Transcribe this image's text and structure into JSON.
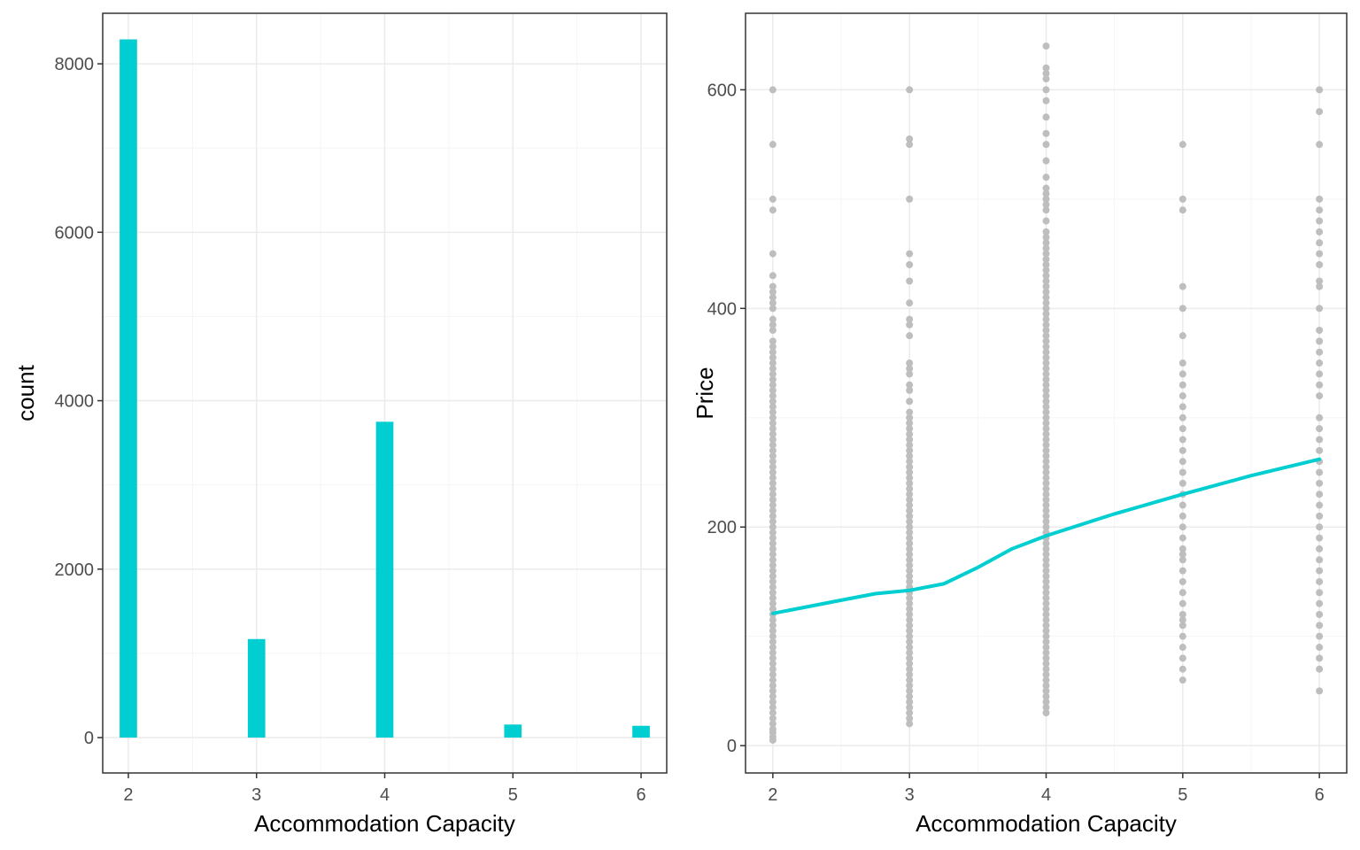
{
  "colors": {
    "accent": "#00CED1",
    "points": "#BEBEBE",
    "grid_major": "#EBEBEB",
    "grid_minor": "#F5F5F5",
    "panel_border": "#333333"
  },
  "chart_data": [
    {
      "type": "bar",
      "title": "",
      "xlabel": "Accommodation Capacity",
      "ylabel": "count",
      "categories": [
        2,
        3,
        4,
        5,
        6
      ],
      "values": [
        8290,
        1170,
        3750,
        155,
        140
      ],
      "xlim": [
        1.8,
        6.2
      ],
      "ylim": [
        -420,
        8600
      ],
      "x_ticks": [
        "2",
        "3",
        "4",
        "5",
        "6"
      ],
      "y_ticks": [
        "0",
        "2000",
        "4000",
        "6000",
        "8000"
      ],
      "grid": true
    },
    {
      "type": "scatter",
      "title": "",
      "xlabel": "Accommodation Capacity",
      "ylabel": "Price",
      "xlim": [
        1.8,
        6.2
      ],
      "ylim": [
        -25,
        670
      ],
      "x_ticks": [
        "2",
        "3",
        "4",
        "5",
        "6"
      ],
      "y_ticks": [
        "0",
        "200",
        "400",
        "600"
      ],
      "grid": true,
      "series": [
        {
          "x": 2,
          "values": [
            5,
            8,
            12,
            15,
            20,
            25,
            30,
            35,
            40,
            45,
            50,
            55,
            60,
            65,
            70,
            75,
            80,
            85,
            90,
            95,
            100,
            105,
            110,
            115,
            120,
            125,
            130,
            135,
            140,
            145,
            150,
            155,
            160,
            165,
            170,
            175,
            180,
            185,
            190,
            195,
            200,
            205,
            210,
            215,
            220,
            225,
            230,
            235,
            240,
            245,
            250,
            255,
            260,
            265,
            270,
            275,
            280,
            285,
            290,
            295,
            300,
            305,
            310,
            315,
            320,
            325,
            330,
            335,
            340,
            345,
            350,
            355,
            360,
            365,
            370,
            380,
            385,
            390,
            400,
            405,
            410,
            415,
            420,
            430,
            450,
            490,
            500,
            550,
            600
          ]
        },
        {
          "x": 3,
          "values": [
            20,
            25,
            30,
            35,
            40,
            45,
            50,
            55,
            60,
            65,
            70,
            75,
            80,
            85,
            90,
            95,
            100,
            105,
            110,
            115,
            120,
            125,
            130,
            135,
            140,
            145,
            150,
            155,
            160,
            165,
            170,
            175,
            180,
            185,
            190,
            195,
            200,
            205,
            210,
            215,
            220,
            225,
            230,
            235,
            240,
            245,
            250,
            255,
            260,
            265,
            270,
            275,
            280,
            285,
            290,
            295,
            300,
            305,
            315,
            325,
            330,
            340,
            345,
            350,
            375,
            385,
            390,
            405,
            425,
            440,
            450,
            500,
            550,
            555,
            600
          ]
        },
        {
          "x": 4,
          "values": [
            30,
            35,
            40,
            45,
            50,
            55,
            60,
            65,
            70,
            75,
            80,
            85,
            90,
            95,
            100,
            105,
            110,
            115,
            120,
            125,
            130,
            135,
            140,
            145,
            150,
            155,
            160,
            165,
            170,
            175,
            180,
            185,
            190,
            195,
            200,
            205,
            210,
            215,
            220,
            225,
            230,
            235,
            240,
            245,
            250,
            255,
            260,
            265,
            270,
            275,
            280,
            285,
            290,
            295,
            300,
            305,
            310,
            315,
            320,
            325,
            330,
            335,
            340,
            345,
            350,
            355,
            360,
            365,
            370,
            375,
            380,
            385,
            390,
            395,
            400,
            405,
            410,
            415,
            420,
            425,
            430,
            435,
            440,
            445,
            450,
            455,
            460,
            465,
            470,
            480,
            490,
            495,
            500,
            505,
            510,
            520,
            535,
            550,
            560,
            575,
            590,
            600,
            610,
            615,
            620,
            640
          ]
        },
        {
          "x": 5,
          "values": [
            60,
            70,
            80,
            90,
            100,
            110,
            115,
            120,
            130,
            140,
            150,
            160,
            170,
            175,
            180,
            190,
            200,
            210,
            220,
            230,
            240,
            250,
            260,
            270,
            280,
            290,
            300,
            310,
            320,
            330,
            340,
            350,
            375,
            400,
            420,
            490,
            500,
            550
          ]
        },
        {
          "x": 6,
          "values": [
            50,
            70,
            80,
            90,
            100,
            110,
            120,
            130,
            140,
            150,
            160,
            170,
            180,
            190,
            200,
            210,
            220,
            230,
            240,
            250,
            260,
            270,
            280,
            290,
            300,
            320,
            330,
            340,
            350,
            360,
            370,
            380,
            400,
            420,
            425,
            440,
            450,
            460,
            470,
            480,
            490,
            500,
            550,
            580,
            600
          ]
        }
      ],
      "trend_line": {
        "x": [
          2,
          2.25,
          2.5,
          2.75,
          3,
          3.25,
          3.5,
          3.75,
          4,
          4.5,
          5,
          5.5,
          6
        ],
        "y": [
          121,
          127,
          133,
          139,
          142,
          148,
          163,
          180,
          192,
          212,
          230,
          247,
          262
        ]
      }
    }
  ]
}
